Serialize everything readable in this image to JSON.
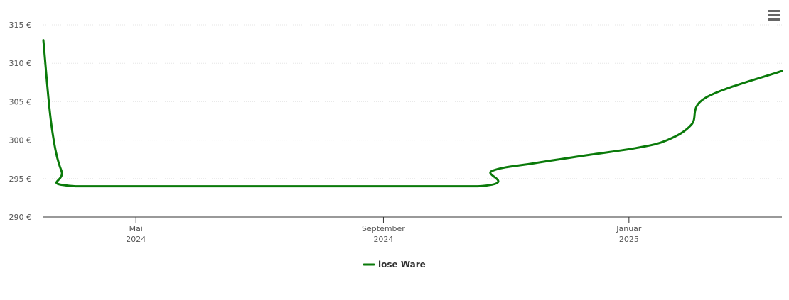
{
  "chart_data": {
    "type": "line",
    "series": [
      {
        "name": "lose Ware",
        "color": "#0a7a0a",
        "points": [
          [
            "2024-03-16",
            313
          ],
          [
            "2024-03-20",
            302
          ],
          [
            "2024-03-25",
            296
          ],
          [
            "2024-04-01",
            294
          ],
          [
            "2024-07-01",
            294
          ],
          [
            "2024-10-18",
            294
          ],
          [
            "2024-10-25",
            296
          ],
          [
            "2024-11-15",
            297
          ],
          [
            "2024-12-10",
            298
          ],
          [
            "2025-01-05",
            299
          ],
          [
            "2025-01-20",
            300
          ],
          [
            "2025-02-01",
            302
          ],
          [
            "2025-02-08",
            305.5
          ],
          [
            "2025-03-18",
            309
          ]
        ]
      }
    ],
    "x_range": [
      "2024-03-16",
      "2025-03-18"
    ],
    "x_ticks": [
      {
        "date": "2024-05-01",
        "month": "Mai",
        "year": "2024"
      },
      {
        "date": "2024-09-01",
        "month": "September",
        "year": "2024"
      },
      {
        "date": "2025-01-01",
        "month": "Januar",
        "year": "2025"
      }
    ],
    "y_range": [
      290,
      315
    ],
    "y_ticks": [
      {
        "value": 290,
        "label": "290 €"
      },
      {
        "value": 295,
        "label": "295 €"
      },
      {
        "value": 300,
        "label": "300 €"
      },
      {
        "value": 305,
        "label": "305 €"
      },
      {
        "value": 310,
        "label": "310 €"
      },
      {
        "value": 315,
        "label": "315 €"
      }
    ],
    "grid": true,
    "legend_position": "bottom-center"
  },
  "toolbar": {
    "menu_icon": "hamburger-menu-icon"
  }
}
